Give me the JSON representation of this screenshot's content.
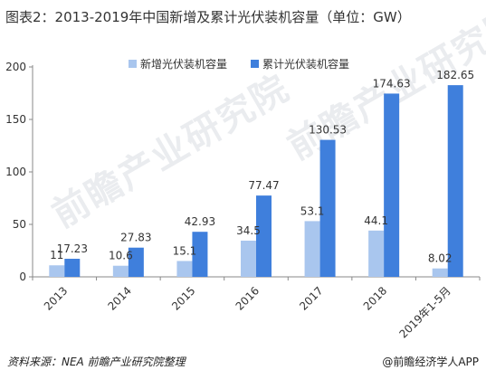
{
  "title": "图表2：2013-2019年中国新增及累计光伏装机容量（单位：GW）",
  "footer": {
    "source": "资料来源：NEA 前瞻产业研究院整理",
    "brand": "@前瞻经济学人APP"
  },
  "watermark": "前瞻产业研究院",
  "colors": {
    "new": "#a9c6ee",
    "cumulative": "#3f7fdc",
    "axis": "#888888"
  },
  "chart_data": {
    "type": "bar",
    "title": "图表2：2013-2019年中国新增及累计光伏装机容量（单位：GW）",
    "categories": [
      "2013",
      "2014",
      "2015",
      "2016",
      "2017",
      "2018",
      "2019年1-5月"
    ],
    "series": [
      {
        "name": "新增光伏装机容量",
        "values": [
          11,
          10.6,
          15.1,
          34.5,
          53.1,
          44.1,
          8.02
        ],
        "labels": [
          "11",
          "10.6",
          "15.1",
          "34.5",
          "53.1",
          "44.1",
          "8.02"
        ]
      },
      {
        "name": "累计光伏装机容量",
        "values": [
          17.23,
          27.83,
          42.93,
          77.47,
          130.53,
          174.63,
          182.65
        ],
        "labels": [
          "17.23",
          "27.83",
          "42.93",
          "77.47",
          "130.53",
          "174.63",
          "182.65"
        ]
      }
    ],
    "yticks": [
      0,
      50,
      100,
      150,
      200
    ],
    "ylim": [
      0,
      200
    ],
    "grid": false,
    "legend": "top-center"
  }
}
